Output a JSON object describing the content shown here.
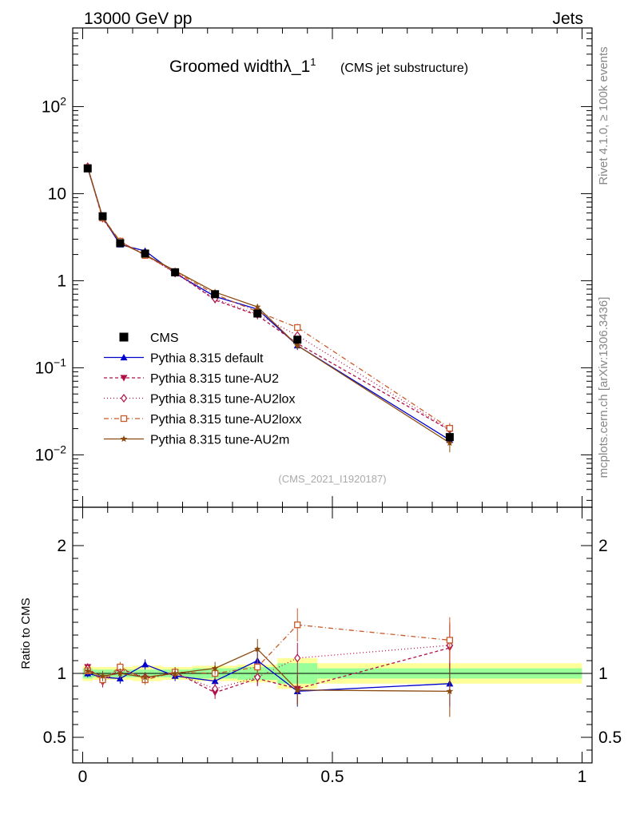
{
  "header": {
    "left": "13000 GeV pp",
    "right": "Jets"
  },
  "side_labels": {
    "rivet": "Rivet 4.1.0, ≥ 100k events",
    "mcplots": "mcplots.cern.ch [arXiv:1306.3436]"
  },
  "chart_data": [
    {
      "type": "line",
      "panel": "main",
      "title": "Groomed widthλ_1",
      "title_superscript": "1",
      "subtitle": "(CMS jet substructure)",
      "watermark": "(CMS_2021_I1920187)",
      "ylabel": "",
      "yscale": "log",
      "ylim": [
        0.0025,
        800
      ],
      "xlim": [
        -0.02,
        1.02
      ],
      "y_tick_labels": [
        "10^-2",
        "10^-1",
        "1",
        "10",
        "10^2"
      ],
      "y_tick_values": [
        0.01,
        0.1,
        1,
        10,
        100
      ],
      "x": [
        0.01,
        0.04,
        0.075,
        0.125,
        0.185,
        0.265,
        0.35,
        0.43,
        0.735
      ],
      "series": [
        {
          "name": "CMS",
          "color": "#000000",
          "marker": "square-filled",
          "dash": "none",
          "values": [
            19.5,
            5.5,
            2.7,
            2.05,
            1.25,
            0.7,
            0.42,
            0.21,
            0.016
          ],
          "errors": [
            1.0,
            0.3,
            0.15,
            0.1,
            0.07,
            0.04,
            0.03,
            0.02,
            0.002
          ]
        },
        {
          "name": "Pythia 8.315 default",
          "color": "#0000cc",
          "marker": "triangle-up-filled",
          "dash": "none",
          "values": [
            19.6,
            5.35,
            2.6,
            2.2,
            1.22,
            0.66,
            0.47,
            0.18,
            0.0148
          ],
          "errors": [
            0.6,
            0.25,
            0.1,
            0.1,
            0.06,
            0.04,
            0.04,
            0.02,
            0.002
          ]
        },
        {
          "name": "Pythia 8.315 tune-AU2",
          "color": "#b0104a",
          "marker": "triangle-down-filled",
          "dash": "4,3",
          "values": [
            20.2,
            5.1,
            2.8,
            1.98,
            1.26,
            0.6,
            0.4,
            0.19,
            0.0192
          ],
          "errors": [
            0.6,
            0.25,
            0.1,
            0.1,
            0.06,
            0.04,
            0.04,
            0.02,
            0.003
          ]
        },
        {
          "name": "Pythia 8.315 tune-AU2lox",
          "color": "#b0104a",
          "marker": "diamond-open",
          "dash": "1,3",
          "values": [
            20.4,
            5.3,
            2.8,
            2.0,
            1.22,
            0.62,
            0.41,
            0.235,
            0.0195
          ],
          "errors": [
            0.6,
            0.25,
            0.1,
            0.1,
            0.06,
            0.04,
            0.04,
            0.02,
            0.003
          ]
        },
        {
          "name": "Pythia 8.315 tune-AU2loxx",
          "color": "#c85a28",
          "marker": "square-open",
          "dash": "6,3,1,3",
          "values": [
            20.0,
            5.25,
            2.85,
            1.95,
            1.27,
            0.7,
            0.44,
            0.29,
            0.0202
          ],
          "errors": [
            0.6,
            0.25,
            0.1,
            0.1,
            0.06,
            0.04,
            0.04,
            0.03,
            0.003
          ]
        },
        {
          "name": "Pythia 8.315 tune-AU2m",
          "color": "#8b4a10",
          "marker": "star-filled",
          "dash": "none",
          "values": [
            19.9,
            5.4,
            2.72,
            1.99,
            1.3,
            0.74,
            0.5,
            0.18,
            0.0137
          ],
          "errors": [
            0.6,
            0.25,
            0.1,
            0.1,
            0.06,
            0.04,
            0.04,
            0.02,
            0.003
          ]
        }
      ]
    },
    {
      "type": "line",
      "panel": "ratio",
      "ylabel": "Ratio to CMS",
      "ylim": [
        0.3,
        2.3
      ],
      "xlim": [
        -0.02,
        1.02
      ],
      "y_tick_labels": [
        "0.5",
        "1",
        "2"
      ],
      "y_tick_values": [
        0.5,
        1,
        2
      ],
      "x_tick_labels": [
        "0",
        "0.5",
        "1"
      ],
      "x_tick_values": [
        0,
        0.5,
        1
      ],
      "band_edges": [
        0,
        0.02,
        0.06,
        0.1,
        0.16,
        0.22,
        0.31,
        0.39,
        0.47,
        1.0
      ],
      "band_inner": [
        0.04,
        0.03,
        0.03,
        0.03,
        0.03,
        0.04,
        0.05,
        0.08,
        0.04
      ],
      "band_outer": [
        0.06,
        0.05,
        0.05,
        0.06,
        0.05,
        0.06,
        0.07,
        0.12,
        0.08
      ],
      "x": [
        0.01,
        0.04,
        0.075,
        0.125,
        0.185,
        0.265,
        0.35,
        0.43,
        0.735
      ],
      "series": [
        {
          "name": "Pythia 8.315 default",
          "color": "#0000cc",
          "marker": "triangle-up-filled",
          "dash": "none",
          "values": [
            1.0,
            0.97,
            0.96,
            1.07,
            0.98,
            0.94,
            1.1,
            0.86,
            0.92
          ],
          "errors": [
            0.03,
            0.04,
            0.04,
            0.04,
            0.04,
            0.05,
            0.08,
            0.12,
            0.18
          ]
        },
        {
          "name": "Pythia 8.315 tune-AU2",
          "color": "#b0104a",
          "marker": "triangle-down-filled",
          "dash": "4,3",
          "values": [
            1.05,
            0.93,
            1.04,
            0.96,
            1.01,
            0.85,
            0.96,
            0.88,
            1.2
          ],
          "errors": [
            0.03,
            0.04,
            0.04,
            0.04,
            0.04,
            0.05,
            0.06,
            0.12,
            0.18
          ]
        },
        {
          "name": "Pythia 8.315 tune-AU2lox",
          "color": "#b0104a",
          "marker": "diamond-open",
          "dash": "1,3",
          "values": [
            1.04,
            0.96,
            1.03,
            0.97,
            1.0,
            0.88,
            0.97,
            1.12,
            1.22
          ],
          "errors": [
            0.03,
            0.04,
            0.04,
            0.04,
            0.04,
            0.05,
            0.06,
            0.12,
            0.18
          ]
        },
        {
          "name": "Pythia 8.315 tune-AU2loxx",
          "color": "#c85a28",
          "marker": "square-open",
          "dash": "6,3,1,3",
          "values": [
            1.02,
            0.95,
            1.05,
            0.95,
            1.01,
            1.0,
            1.05,
            1.38,
            1.26
          ],
          "errors": [
            0.03,
            0.04,
            0.04,
            0.04,
            0.04,
            0.05,
            0.06,
            0.13,
            0.18
          ]
        },
        {
          "name": "Pythia 8.315 tune-AU2m",
          "color": "#8b4a10",
          "marker": "star-filled",
          "dash": "none",
          "values": [
            1.02,
            0.98,
            1.0,
            0.97,
            1.0,
            1.04,
            1.19,
            0.87,
            0.86
          ],
          "errors": [
            0.03,
            0.04,
            0.04,
            0.04,
            0.04,
            0.05,
            0.08,
            0.12,
            0.2
          ]
        }
      ]
    }
  ]
}
